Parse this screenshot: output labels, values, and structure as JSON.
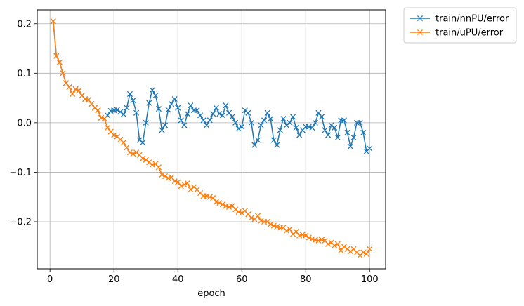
{
  "chart_data": {
    "type": "line",
    "xlabel": "epoch",
    "ylabel": "",
    "title": "",
    "xlim": [
      -4,
      105
    ],
    "ylim": [
      -0.295,
      0.228
    ],
    "xticks": [
      0,
      20,
      40,
      60,
      80,
      100
    ],
    "yticks": [
      0.2,
      0.1,
      0.0,
      -0.1,
      -0.2
    ],
    "ytick_labels": [
      "0.2",
      "0.1",
      "0.0",
      "−0.1",
      "−0.2"
    ],
    "grid": true,
    "legend_placement": "outside-top-right",
    "marker": "x",
    "series": [
      {
        "name": "train/nnPU/error",
        "color": "#1f77b4",
        "x": [
          1,
          2,
          3,
          4,
          5,
          6,
          7,
          8,
          9,
          10,
          11,
          12,
          13,
          14,
          15,
          16,
          17,
          18,
          19,
          20,
          21,
          22,
          23,
          24,
          25,
          26,
          27,
          28,
          29,
          30,
          31,
          32,
          33,
          34,
          35,
          36,
          37,
          38,
          39,
          40,
          41,
          42,
          43,
          44,
          45,
          46,
          47,
          48,
          49,
          50,
          51,
          52,
          53,
          54,
          55,
          56,
          57,
          58,
          59,
          60,
          61,
          62,
          63,
          64,
          65,
          66,
          67,
          68,
          69,
          70,
          71,
          72,
          73,
          74,
          75,
          76,
          77,
          78,
          79,
          80,
          81,
          82,
          83,
          84,
          85,
          86,
          87,
          88,
          89,
          90,
          91,
          92,
          93,
          94,
          95,
          96,
          97,
          98,
          99,
          100
        ],
        "values": [
          0.205,
          0.135,
          0.122,
          0.1,
          0.08,
          0.072,
          0.058,
          0.068,
          0.065,
          0.055,
          0.048,
          0.046,
          0.038,
          0.03,
          0.025,
          0.01,
          0.008,
          0.015,
          0.024,
          0.025,
          0.026,
          0.022,
          0.017,
          0.03,
          0.058,
          0.045,
          0.02,
          -0.035,
          -0.04,
          0.0,
          0.04,
          0.066,
          0.055,
          0.028,
          -0.015,
          -0.005,
          0.026,
          0.038,
          0.048,
          0.03,
          0.005,
          -0.005,
          0.018,
          0.035,
          0.025,
          0.025,
          0.015,
          0.005,
          -0.005,
          0.005,
          0.018,
          0.03,
          0.018,
          0.015,
          0.035,
          0.02,
          0.012,
          0.0,
          -0.012,
          -0.008,
          0.025,
          0.02,
          0.0,
          -0.045,
          -0.035,
          -0.005,
          0.005,
          0.02,
          0.008,
          -0.035,
          -0.045,
          -0.015,
          0.008,
          -0.005,
          0.0,
          0.012,
          -0.01,
          -0.025,
          -0.015,
          -0.008,
          -0.008,
          -0.01,
          0.0,
          0.02,
          0.012,
          -0.015,
          -0.025,
          -0.005,
          -0.01,
          -0.03,
          0.005,
          0.005,
          -0.02,
          -0.048,
          -0.03,
          0.0,
          0.0,
          -0.02,
          -0.058,
          -0.052
        ]
      },
      {
        "name": "train/uPU/error",
        "color": "#ff7f0e",
        "x": [
          1,
          2,
          3,
          4,
          5,
          6,
          7,
          8,
          9,
          10,
          11,
          12,
          13,
          14,
          15,
          16,
          17,
          18,
          19,
          20,
          21,
          22,
          23,
          24,
          25,
          26,
          27,
          28,
          29,
          30,
          31,
          32,
          33,
          34,
          35,
          36,
          37,
          38,
          39,
          40,
          41,
          42,
          43,
          44,
          45,
          46,
          47,
          48,
          49,
          50,
          51,
          52,
          53,
          54,
          55,
          56,
          57,
          58,
          59,
          60,
          61,
          62,
          63,
          64,
          65,
          66,
          67,
          68,
          69,
          70,
          71,
          72,
          73,
          74,
          75,
          76,
          77,
          78,
          79,
          80,
          81,
          82,
          83,
          84,
          85,
          86,
          87,
          88,
          89,
          90,
          91,
          92,
          93,
          94,
          95,
          96,
          97,
          98,
          99,
          100
        ],
        "values": [
          0.205,
          0.135,
          0.122,
          0.1,
          0.08,
          0.072,
          0.058,
          0.068,
          0.065,
          0.055,
          0.048,
          0.046,
          0.038,
          0.03,
          0.025,
          0.01,
          0.008,
          -0.01,
          -0.018,
          -0.025,
          -0.028,
          -0.034,
          -0.04,
          -0.05,
          -0.06,
          -0.063,
          -0.06,
          -0.065,
          -0.072,
          -0.075,
          -0.08,
          -0.085,
          -0.083,
          -0.09,
          -0.105,
          -0.108,
          -0.112,
          -0.11,
          -0.118,
          -0.12,
          -0.128,
          -0.125,
          -0.122,
          -0.135,
          -0.13,
          -0.135,
          -0.142,
          -0.148,
          -0.148,
          -0.15,
          -0.152,
          -0.16,
          -0.162,
          -0.165,
          -0.168,
          -0.17,
          -0.168,
          -0.175,
          -0.18,
          -0.182,
          -0.178,
          -0.185,
          -0.192,
          -0.195,
          -0.188,
          -0.198,
          -0.2,
          -0.2,
          -0.205,
          -0.208,
          -0.21,
          -0.212,
          -0.212,
          -0.218,
          -0.215,
          -0.225,
          -0.22,
          -0.228,
          -0.226,
          -0.228,
          -0.232,
          -0.235,
          -0.237,
          -0.238,
          -0.236,
          -0.238,
          -0.245,
          -0.242,
          -0.248,
          -0.245,
          -0.258,
          -0.25,
          -0.255,
          -0.26,
          -0.255,
          -0.262,
          -0.268,
          -0.262,
          -0.265,
          -0.255
        ]
      }
    ]
  }
}
